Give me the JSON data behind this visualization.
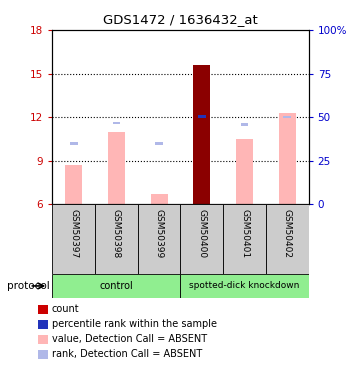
{
  "title": "GDS1472 / 1636432_at",
  "samples": [
    "GSM50397",
    "GSM50398",
    "GSM50399",
    "GSM50400",
    "GSM50401",
    "GSM50402"
  ],
  "ylim_left": [
    6,
    18
  ],
  "ylim_right": [
    0,
    100
  ],
  "yticks_left": [
    6,
    9,
    12,
    15,
    18
  ],
  "yticks_right": [
    0,
    25,
    50,
    75,
    100
  ],
  "ytick_labels_right": [
    "0",
    "25",
    "50",
    "75",
    "100%"
  ],
  "bar_values": [
    8.7,
    11.0,
    6.7,
    15.6,
    10.5,
    12.3
  ],
  "bar_colors_main": [
    "#FFB6B6",
    "#FFB6B6",
    "#FFB6B6",
    "#8B0000",
    "#FFB6B6",
    "#FFB6B6"
  ],
  "rank_values": [
    10.2,
    11.6,
    10.2,
    12.05,
    11.5,
    12.0
  ],
  "rank_colors": [
    "#B0B8E8",
    "#B0B8E8",
    "#B0B8E8",
    "#2233BB",
    "#B0B8E8",
    "#B0B8E8"
  ],
  "base_value": 6,
  "legend_items": [
    {
      "color": "#CC0000",
      "label": "count"
    },
    {
      "color": "#2233BB",
      "label": "percentile rank within the sample"
    },
    {
      "color": "#FFB6B6",
      "label": "value, Detection Call = ABSENT"
    },
    {
      "color": "#B0B8E8",
      "label": "rank, Detection Call = ABSENT"
    }
  ],
  "ylabel_left_color": "#CC0000",
  "ylabel_right_color": "#0000CC",
  "bar_width": 0.4,
  "gridline_values": [
    9,
    12,
    15
  ],
  "ctrl_color": "#90EE90",
  "label_bg": "#CCCCCC"
}
